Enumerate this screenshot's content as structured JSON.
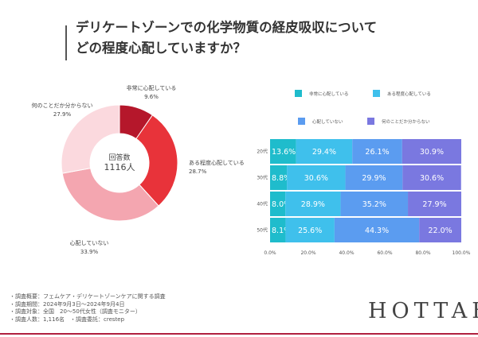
{
  "title": {
    "line1": "デリケートゾーンでの化学物質の経皮吸収について",
    "line2": "どの程度心配していますか？"
  },
  "colors": {
    "pie": [
      "#b5172b",
      "#e8333a",
      "#f4a6b0",
      "#fbd9de"
    ],
    "bars": [
      "#1fbccc",
      "#3fc0ec",
      "#5b9cf0",
      "#7a78e0"
    ]
  },
  "chart_data": [
    {
      "type": "pie",
      "donut": true,
      "center_label": "回答数",
      "center_value": "1116人",
      "slices": [
        {
          "label": "非常に心配している",
          "value": 9.6,
          "text": "9.6%"
        },
        {
          "label": "ある程度心配している",
          "value": 28.7,
          "text": "28.7%"
        },
        {
          "label": "心配していない",
          "value": 33.9,
          "text": "33.9%"
        },
        {
          "label": "何のことだか分からない",
          "value": 27.9,
          "text": "27.9%"
        }
      ]
    },
    {
      "type": "bar",
      "orientation": "horizontal",
      "stacked": true,
      "categories": [
        "20代",
        "30代",
        "40代",
        "50代"
      ],
      "series": [
        {
          "name": "非常に心配している",
          "values": [
            13.6,
            8.8,
            8.0,
            8.1
          ]
        },
        {
          "name": "ある程度心配している",
          "values": [
            29.4,
            30.6,
            28.9,
            25.6
          ]
        },
        {
          "name": "心配していない",
          "values": [
            26.1,
            29.9,
            35.2,
            44.3
          ]
        },
        {
          "name": "何のことだか分からない",
          "values": [
            30.9,
            30.6,
            27.9,
            22.0
          ]
        }
      ],
      "xlim": [
        0,
        100
      ],
      "xticks": [
        "0.0%",
        "20.0%",
        "40.0%",
        "60.0%",
        "80.0%",
        "100.0%"
      ],
      "legend": "top"
    }
  ],
  "notes": [
    "・調査概要：フェムケア・デリケートゾーンケアに関する調査",
    "・調査期間：2024年9月3日～2024年9月4日",
    "・調査対象：全国　20～50代女性（調査モニター）",
    "・調査人数：1,116名　・調査委託：crestep"
  ],
  "logo": "HOTTAB"
}
